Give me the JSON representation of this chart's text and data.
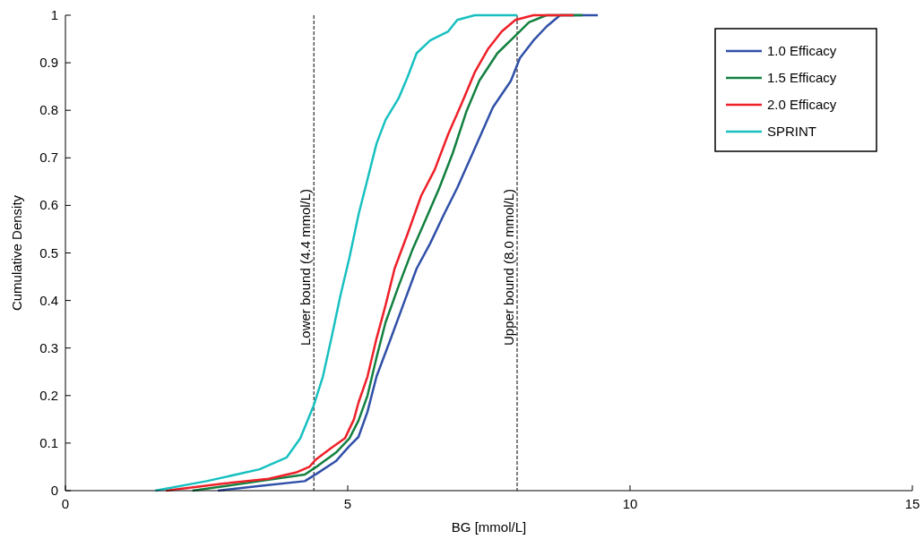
{
  "chart_data": {
    "type": "line",
    "xlabel": "BG [mmol/L]",
    "ylabel": "Cumulative Density",
    "xlim": [
      0,
      15
    ],
    "xticks": [
      0,
      5,
      10,
      15
    ],
    "ylim": [
      0,
      1
    ],
    "yticks": [
      0,
      0.1,
      0.2,
      0.3,
      0.4,
      0.5,
      0.6,
      0.7,
      0.8,
      0.9,
      1
    ],
    "legend": "top right",
    "grid": false,
    "ref_lines": [
      {
        "axis": "x",
        "value": 4.4,
        "label": "Lower bound (4.4 mmol/L)",
        "line_style": "dashed",
        "color": "#000000"
      },
      {
        "axis": "x",
        "value": 8.0,
        "label": "Upper bound (8.0 mmol/L)",
        "line_style": "dashed",
        "color": "#000000"
      }
    ],
    "series": [
      {
        "name": "1.0 Efficacy",
        "color": "#3050a8",
        "x": [
          2.7,
          3.44,
          4.24,
          4.48,
          4.79,
          5.03,
          5.19,
          5.35,
          5.51,
          5.75,
          5.98,
          6.22,
          6.46,
          6.7,
          6.94,
          7.25,
          7.57,
          7.89,
          8.05,
          8.29,
          8.52,
          8.76,
          9.43
        ],
        "values": [
          0,
          0.01,
          0.02,
          0.038,
          0.062,
          0.094,
          0.113,
          0.166,
          0.24,
          0.316,
          0.39,
          0.467,
          0.52,
          0.58,
          0.637,
          0.72,
          0.806,
          0.862,
          0.91,
          0.947,
          0.976,
          1,
          1
        ]
      },
      {
        "name": "1.5 Efficacy",
        "color": "#138040",
        "x": [
          2.25,
          3.44,
          4.24,
          4.48,
          4.79,
          5.03,
          5.19,
          5.35,
          5.51,
          5.67,
          5.9,
          6.14,
          6.38,
          6.62,
          6.86,
          7.1,
          7.33,
          7.65,
          7.97,
          8.21,
          8.52,
          9.16
        ],
        "values": [
          0,
          0.02,
          0.034,
          0.053,
          0.08,
          0.11,
          0.147,
          0.2,
          0.28,
          0.354,
          0.43,
          0.505,
          0.57,
          0.636,
          0.71,
          0.797,
          0.862,
          0.92,
          0.957,
          0.985,
          1,
          1
        ]
      },
      {
        "name": "2.0 Efficacy",
        "color": "#ee2028",
        "x": [
          1.78,
          2.81,
          3.6,
          4.08,
          4.32,
          4.43,
          4.71,
          4.95,
          5.11,
          5.19,
          5.35,
          5.51,
          5.67,
          5.83,
          6.06,
          6.3,
          6.54,
          6.78,
          7.02,
          7.25,
          7.49,
          7.73,
          7.97,
          8.29,
          9.0
        ],
        "values": [
          0,
          0.015,
          0.025,
          0.038,
          0.05,
          0.065,
          0.09,
          0.11,
          0.15,
          0.185,
          0.24,
          0.32,
          0.39,
          0.467,
          0.54,
          0.62,
          0.675,
          0.75,
          0.815,
          0.88,
          0.93,
          0.966,
          0.99,
          1,
          1
        ]
      },
      {
        "name": "SPRINT",
        "color": "#18c0c0",
        "x": [
          1.59,
          2.5,
          3.44,
          3.92,
          4.16,
          4.4,
          4.56,
          4.71,
          4.87,
          5.03,
          5.19,
          5.35,
          5.51,
          5.67,
          5.9,
          6.06,
          6.22,
          6.46,
          6.78,
          6.94,
          7.25,
          8.0
        ],
        "values": [
          0,
          0.02,
          0.045,
          0.07,
          0.11,
          0.18,
          0.24,
          0.32,
          0.41,
          0.49,
          0.58,
          0.655,
          0.73,
          0.78,
          0.825,
          0.87,
          0.92,
          0.947,
          0.966,
          0.99,
          1,
          1
        ]
      }
    ]
  }
}
